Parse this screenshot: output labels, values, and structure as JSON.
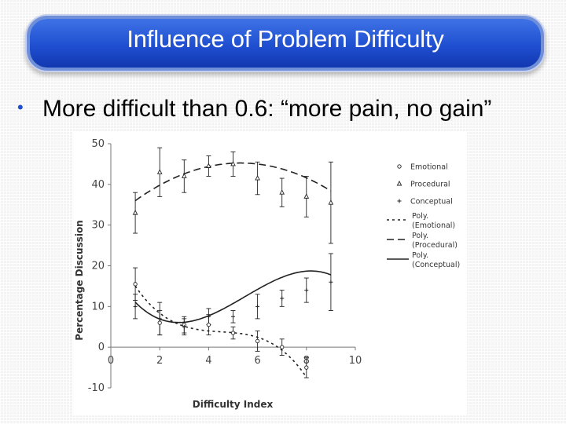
{
  "slide": {
    "title": "Influence of Problem Difficulty",
    "bullet": "More difficult than 0.6: “more pain, no gain”"
  },
  "colors": {
    "title_bar": "#1f4fd0",
    "bullet": "#1f4fd0",
    "series": "#222222"
  },
  "chart_data": {
    "type": "line",
    "xlabel": "Difficulty Index",
    "ylabel": "Percentage Discussion",
    "xlim": [
      0,
      10
    ],
    "ylim": [
      -10,
      50
    ],
    "x_ticks": [
      "0",
      "2",
      "4",
      "6",
      "8",
      "10"
    ],
    "y_ticks": [
      "50",
      "40",
      "30",
      "20",
      "10",
      "0",
      "-10"
    ],
    "grid": false,
    "legend_position": "right",
    "series": [
      {
        "name": "Emotional",
        "marker": "circle",
        "x": [
          1,
          2,
          3,
          4,
          5,
          6,
          7,
          8
        ],
        "y": [
          15.5,
          6,
          5.5,
          5.5,
          3.5,
          1.5,
          0,
          -5
        ],
        "err": [
          4,
          3,
          2,
          2.5,
          1.5,
          2.5,
          2,
          2.5
        ]
      },
      {
        "name": "Procedural",
        "marker": "triangle",
        "x": [
          1,
          2,
          3,
          4,
          5,
          6,
          7,
          8,
          9
        ],
        "y": [
          33,
          43,
          42,
          44.5,
          45,
          41.5,
          38,
          37,
          35.5
        ],
        "err": [
          5,
          6,
          4,
          2.5,
          3,
          4,
          3.5,
          5,
          10
        ]
      },
      {
        "name": "Conceptual",
        "marker": "plus",
        "x": [
          1,
          2,
          3,
          4,
          5,
          6,
          7,
          8,
          9
        ],
        "y": [
          10,
          7,
          5,
          7.5,
          7.5,
          10,
          12,
          14,
          16
        ],
        "err": [
          3,
          4,
          2,
          2,
          1.5,
          3,
          2,
          3,
          7
        ]
      }
    ],
    "trendlines": [
      {
        "name": "Poly. (Emotional)",
        "style": "dotted",
        "x_range": [
          1,
          8
        ],
        "coeffs": [
          26.56,
          -14.4,
          3.11,
          -0.23
        ]
      },
      {
        "name": "Poly. (Procedural)",
        "style": "dashed",
        "x_range": [
          1,
          9
        ],
        "coeffs": [
          31.2,
          5.3,
          -0.5
        ]
      },
      {
        "name": "Poly. (Conceptual)",
        "style": "solid",
        "x_range": [
          1,
          9
        ],
        "coeffs": [
          19.48,
          -10.9,
          2.63,
          -0.16
        ]
      }
    ],
    "legend": [
      {
        "label": "Emotional",
        "kind": "marker",
        "marker": "circle"
      },
      {
        "label": "Procedural",
        "kind": "marker",
        "marker": "triangle"
      },
      {
        "label": "Conceptual",
        "kind": "marker",
        "marker": "plus"
      },
      {
        "label": [
          "Poly.",
          "(Emotional)"
        ],
        "kind": "line",
        "style": "dotted"
      },
      {
        "label": [
          "Poly.",
          "(Procedural)"
        ],
        "kind": "line",
        "style": "dashed"
      },
      {
        "label": [
          "Poly.",
          "(Conceptual)"
        ],
        "kind": "line",
        "style": "solid"
      }
    ]
  }
}
